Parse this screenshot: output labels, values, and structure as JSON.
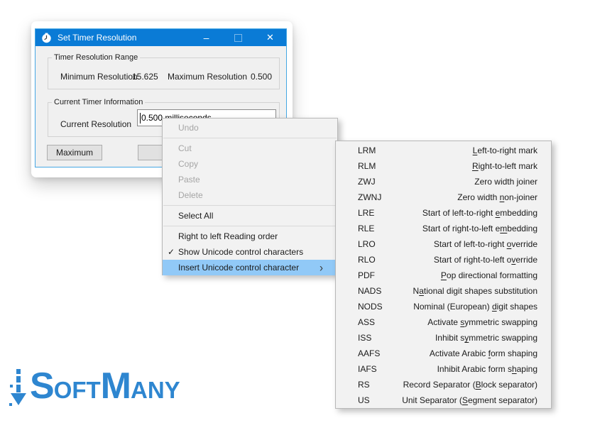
{
  "colors": {
    "titlebar_blue": "#0a7bd6",
    "menu_highlight": "#91c9f7",
    "logo_blue": "#2e86d0",
    "window_border": "#45a7e3"
  },
  "window": {
    "title": "Set Timer Resolution",
    "titlebar_buttons": {
      "minimize_glyph": "–",
      "close_glyph": "✕"
    },
    "timer_range_group": {
      "label": "Timer Resolution Range",
      "min_label": "Minimum Resolution",
      "min_value": "15.625",
      "max_label": "Maximum Resolution",
      "max_value": "0.500"
    },
    "current_group": {
      "label": "Current Timer Information",
      "field_label": "Current Resolution",
      "field_value": "0.500 milliseconds"
    },
    "maximum_button_label": "Maximum"
  },
  "context_menu": {
    "check_glyph": "✓",
    "submenu_arrow_glyph": "›",
    "items": [
      {
        "label": "Undo",
        "state": "disabled"
      },
      {
        "type": "separator"
      },
      {
        "label": "Cut",
        "state": "disabled"
      },
      {
        "label": "Copy",
        "state": "disabled"
      },
      {
        "label": "Paste",
        "state": "disabled"
      },
      {
        "label": "Delete",
        "state": "disabled"
      },
      {
        "type": "separator"
      },
      {
        "label": "Select All",
        "state": "normal"
      },
      {
        "type": "separator"
      },
      {
        "label": "Right to left Reading order",
        "state": "normal"
      },
      {
        "label": "Show Unicode control characters",
        "state": "normal",
        "checked": true
      },
      {
        "label": "Insert Unicode control character",
        "state": "highlighted",
        "submenu": true
      }
    ]
  },
  "submenu": {
    "items": [
      {
        "abbr": "LRM",
        "pre": "",
        "accel": "L",
        "post": "eft-to-right mark"
      },
      {
        "abbr": "RLM",
        "pre": "",
        "accel": "R",
        "post": "ight-to-left mark"
      },
      {
        "abbr": "ZWJ",
        "pre": "Zero width joiner",
        "accel": "",
        "post": ""
      },
      {
        "abbr": "ZWNJ",
        "pre": "Zero width ",
        "accel": "n",
        "post": "on-joiner"
      },
      {
        "abbr": "LRE",
        "pre": "Start of left-to-right ",
        "accel": "e",
        "post": "mbedding"
      },
      {
        "abbr": "RLE",
        "pre": "Start of right-to-left e",
        "accel": "m",
        "post": "bedding"
      },
      {
        "abbr": "LRO",
        "pre": "Start of left-to-right ",
        "accel": "o",
        "post": "verride"
      },
      {
        "abbr": "RLO",
        "pre": "Start of right-to-left o",
        "accel": "v",
        "post": "erride"
      },
      {
        "abbr": "PDF",
        "pre": "",
        "accel": "P",
        "post": "op directional formatting"
      },
      {
        "abbr": "NADS",
        "pre": "N",
        "accel": "a",
        "post": "tional digit shapes substitution"
      },
      {
        "abbr": "NODS",
        "pre": "Nominal (European) ",
        "accel": "d",
        "post": "igit shapes"
      },
      {
        "abbr": "ASS",
        "pre": "Activate ",
        "accel": "s",
        "post": "ymmetric swapping"
      },
      {
        "abbr": "ISS",
        "pre": "Inhibit s",
        "accel": "y",
        "post": "mmetric swapping"
      },
      {
        "abbr": "AAFS",
        "pre": "Activate Arabic ",
        "accel": "f",
        "post": "orm shaping"
      },
      {
        "abbr": "IAFS",
        "pre": "Inhibit Arabic form s",
        "accel": "h",
        "post": "aping"
      },
      {
        "abbr": "RS",
        "pre": "Record Separator (",
        "accel": "B",
        "post": "lock separator)"
      },
      {
        "abbr": "US",
        "pre": "Unit Separator (",
        "accel": "S",
        "post": "egment separator)"
      }
    ]
  },
  "logo": {
    "segments": [
      {
        "text": "S",
        "style": "big"
      },
      {
        "text": "OFT",
        "style": "small"
      },
      {
        "text": "M",
        "style": "big"
      },
      {
        "text": "ANY",
        "style": "small"
      }
    ]
  }
}
